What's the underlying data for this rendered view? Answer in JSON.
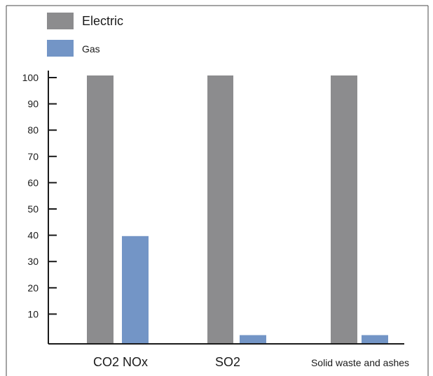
{
  "chart_data": {
    "type": "bar",
    "categories": [
      "CO2 NOx",
      "SO2",
      "Solid waste and ashes"
    ],
    "series": [
      {
        "name": "Electric",
        "color": "#8c8c8e",
        "values": [
          100,
          100,
          100
        ]
      },
      {
        "name": "Gas",
        "color": "#7395c6",
        "values": [
          40,
          3,
          3
        ]
      }
    ],
    "y_ticks": [
      10,
      20,
      30,
      40,
      50,
      60,
      70,
      80,
      90,
      100
    ],
    "ylim": [
      0,
      100
    ],
    "grid": false,
    "legend_position": "top-left",
    "title": "",
    "xlabel": "",
    "ylabel": ""
  }
}
